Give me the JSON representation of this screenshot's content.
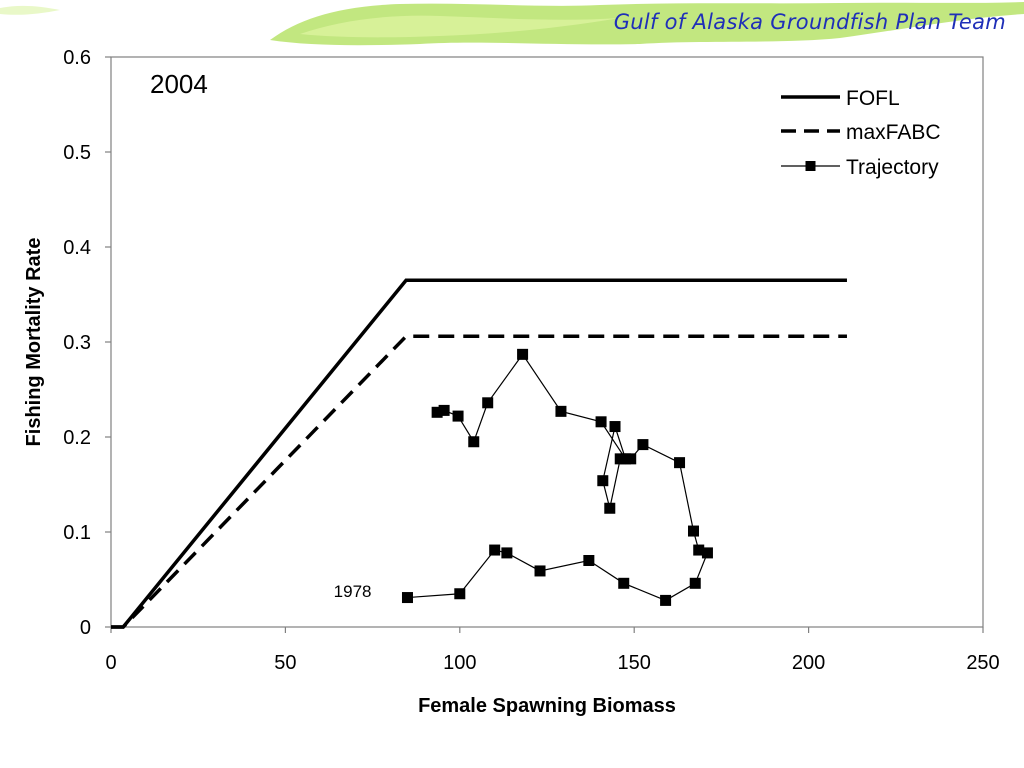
{
  "header": {
    "team_title": "Gulf of Alaska Groundfish Plan Team"
  },
  "colors": {
    "title_blue": "#1f2fb8",
    "banner_green": "#b7e36a",
    "series": "#000000"
  },
  "chart_data": {
    "type": "line",
    "title": "2004",
    "xlabel": "Female Spawning Biomass",
    "ylabel": "Fishing Mortality Rate",
    "xlim": [
      0,
      250
    ],
    "ylim": [
      0,
      0.6
    ],
    "xticks": [
      0,
      50,
      100,
      150,
      200,
      250
    ],
    "yticks": [
      0,
      0.1,
      0.2,
      0.3,
      0.4,
      0.5,
      0.6
    ],
    "xtick_labels": [
      "0",
      "50",
      "100",
      "150",
      "200",
      "250"
    ],
    "ytick_labels": [
      "0",
      "0.1",
      "0.2",
      "0.3",
      "0.4",
      "0.5",
      "0.6"
    ],
    "grid": false,
    "legend_position": "top-right",
    "series": [
      {
        "name": "FOFL",
        "style": "solid",
        "x": [
          0,
          3.5,
          84.6,
          211.0
        ],
        "y": [
          0,
          0,
          0.365,
          0.365
        ]
      },
      {
        "name": "maxFABC",
        "style": "dashed",
        "x": [
          0,
          3.5,
          84.6,
          211.0
        ],
        "y": [
          0,
          0,
          0.306,
          0.306
        ]
      },
      {
        "name": "Trajectory",
        "style": "line-square-markers",
        "x": [
          85,
          100,
          110,
          113.5,
          123,
          137,
          147,
          159,
          167.5,
          171,
          168.5,
          167,
          163,
          152.5,
          149,
          146,
          143,
          141,
          144.5,
          147.5,
          140.5,
          129,
          118,
          108,
          104,
          99.5,
          95.5,
          93.5
        ],
        "y": [
          0.031,
          0.035,
          0.081,
          0.078,
          0.059,
          0.07,
          0.046,
          0.028,
          0.046,
          0.078,
          0.081,
          0.101,
          0.173,
          0.192,
          0.177,
          0.177,
          0.125,
          0.154,
          0.211,
          0.177,
          0.216,
          0.227,
          0.287,
          0.236,
          0.195,
          0.222,
          0.228,
          0.226
        ]
      }
    ],
    "annotations": [
      {
        "text": "1978",
        "x": 69,
        "y": 0.038
      }
    ]
  }
}
